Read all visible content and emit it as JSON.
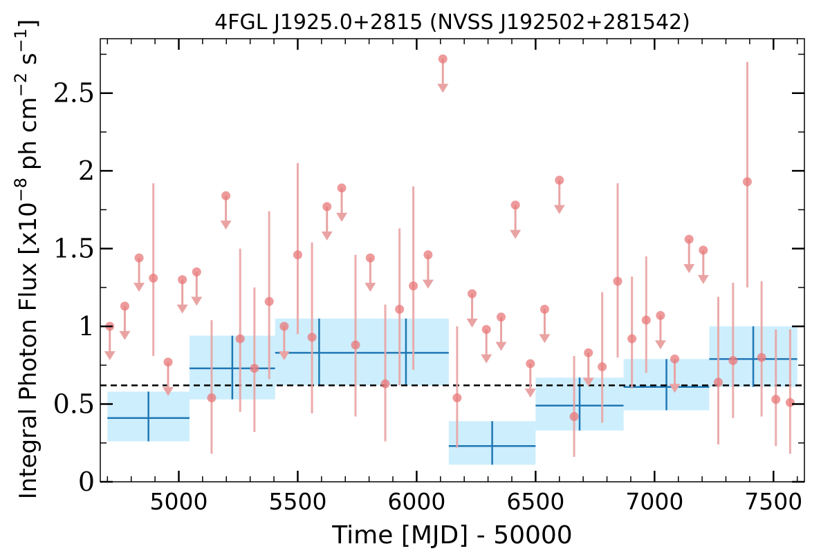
{
  "chart_data": {
    "type": "scatter",
    "title": "4FGL J1925.0+2815 (NVSS J192502+281542)",
    "xlabel": "Time [MJD] - 50000",
    "ylabel_main": "Integral Photon Flux [x10",
    "ylabel_exp1": "−8",
    "ylabel_mid": " ph cm",
    "ylabel_exp2": "−2",
    "ylabel_end": " s",
    "ylabel_exp3": "−1",
    "ylabel_close": "]",
    "xlim": [
      4670,
      7630
    ],
    "ylim": [
      0,
      2.85
    ],
    "xticks": [
      5000,
      5500,
      6000,
      6500,
      7000,
      7500
    ],
    "yticks": [
      0,
      0.5,
      1,
      1.5,
      2,
      2.5
    ],
    "ytick_labels": [
      "0",
      "0.5",
      "1",
      "1.5",
      "2",
      "2.5"
    ],
    "grid": false,
    "mean_flux": 0.62,
    "colors": {
      "points": "#e8787a",
      "errorbars": "#e9a3a3",
      "bins": "#1f77b4",
      "bin_fill": "#cdeefd",
      "mean_line": "#000000"
    },
    "detections": [
      {
        "x": 4893,
        "y": 1.31,
        "lo": 0.81,
        "hi": 1.92
      },
      {
        "x": 5138,
        "y": 0.54,
        "lo": 0.18,
        "hi": 1.04
      },
      {
        "x": 5258,
        "y": 0.92,
        "lo": 0.45,
        "hi": 1.5
      },
      {
        "x": 5318,
        "y": 0.73,
        "lo": 0.32,
        "hi": 1.25
      },
      {
        "x": 5380,
        "y": 1.16,
        "lo": 0.66,
        "hi": 1.74
      },
      {
        "x": 5500,
        "y": 1.46,
        "lo": 0.95,
        "hi": 2.05
      },
      {
        "x": 5560,
        "y": 0.93,
        "lo": 0.44,
        "hi": 1.54
      },
      {
        "x": 5743,
        "y": 0.88,
        "lo": 0.42,
        "hi": 1.46
      },
      {
        "x": 5868,
        "y": 0.63,
        "lo": 0.26,
        "hi": 1.14
      },
      {
        "x": 5928,
        "y": 1.11,
        "lo": 0.62,
        "hi": 1.63
      },
      {
        "x": 5986,
        "y": 1.26,
        "lo": 0.72,
        "hi": 1.9
      },
      {
        "x": 6170,
        "y": 0.54,
        "lo": 0.22,
        "hi": 1.0
      },
      {
        "x": 6662,
        "y": 0.42,
        "lo": 0.16,
        "hi": 0.81
      },
      {
        "x": 6780,
        "y": 0.74,
        "lo": 0.38,
        "hi": 1.22
      },
      {
        "x": 6845,
        "y": 1.29,
        "lo": 0.8,
        "hi": 1.92
      },
      {
        "x": 6905,
        "y": 0.92,
        "lo": 0.6,
        "hi": 1.32
      },
      {
        "x": 6965,
        "y": 1.04,
        "lo": 0.7,
        "hi": 1.45
      },
      {
        "x": 7268,
        "y": 0.64,
        "lo": 0.24,
        "hi": 1.19
      },
      {
        "x": 7330,
        "y": 0.78,
        "lo": 0.41,
        "hi": 1.28
      },
      {
        "x": 7390,
        "y": 1.93,
        "lo": 1.25,
        "hi": 2.7
      },
      {
        "x": 7450,
        "y": 0.8,
        "lo": 0.42,
        "hi": 1.29
      },
      {
        "x": 7510,
        "y": 0.53,
        "lo": 0.23,
        "hi": 0.98
      },
      {
        "x": 7570,
        "y": 0.51,
        "lo": 0.18,
        "hi": 0.98
      }
    ],
    "upper_limits": [
      {
        "x": 4710,
        "y": 1.0
      },
      {
        "x": 4773,
        "y": 1.13
      },
      {
        "x": 4833,
        "y": 1.44
      },
      {
        "x": 4955,
        "y": 0.77
      },
      {
        "x": 5015,
        "y": 1.3
      },
      {
        "x": 5075,
        "y": 1.35
      },
      {
        "x": 5198,
        "y": 1.84
      },
      {
        "x": 5443,
        "y": 1.0
      },
      {
        "x": 5623,
        "y": 1.77
      },
      {
        "x": 5685,
        "y": 1.89
      },
      {
        "x": 5805,
        "y": 1.44
      },
      {
        "x": 6048,
        "y": 1.46
      },
      {
        "x": 6110,
        "y": 2.72
      },
      {
        "x": 6233,
        "y": 1.21
      },
      {
        "x": 6293,
        "y": 0.98
      },
      {
        "x": 6355,
        "y": 1.06
      },
      {
        "x": 6415,
        "y": 1.78
      },
      {
        "x": 6478,
        "y": 0.76
      },
      {
        "x": 6538,
        "y": 1.11
      },
      {
        "x": 6600,
        "y": 1.94
      },
      {
        "x": 6722,
        "y": 0.83
      },
      {
        "x": 7025,
        "y": 1.07
      },
      {
        "x": 7085,
        "y": 0.79
      },
      {
        "x": 7145,
        "y": 1.56
      },
      {
        "x": 7205,
        "y": 1.49
      }
    ],
    "bins": [
      {
        "x0": 4700,
        "x1": 5045,
        "y": 0.41,
        "lo": 0.26,
        "hi": 0.58
      },
      {
        "x0": 5045,
        "x1": 5405,
        "y": 0.73,
        "lo": 0.53,
        "hi": 0.94
      },
      {
        "x0": 5405,
        "x1": 5775,
        "y": 0.83,
        "lo": 0.62,
        "hi": 1.05
      },
      {
        "x0": 5775,
        "x1": 6135,
        "y": 0.83,
        "lo": 0.62,
        "hi": 1.05
      },
      {
        "x0": 6135,
        "x1": 6500,
        "y": 0.23,
        "lo": 0.11,
        "hi": 0.39
      },
      {
        "x0": 6500,
        "x1": 6870,
        "y": 0.49,
        "lo": 0.33,
        "hi": 0.67
      },
      {
        "x0": 6870,
        "x1": 7230,
        "y": 0.61,
        "lo": 0.46,
        "hi": 0.79
      },
      {
        "x0": 7230,
        "x1": 7600,
        "y": 0.79,
        "lo": 0.61,
        "hi": 1.0
      }
    ]
  }
}
